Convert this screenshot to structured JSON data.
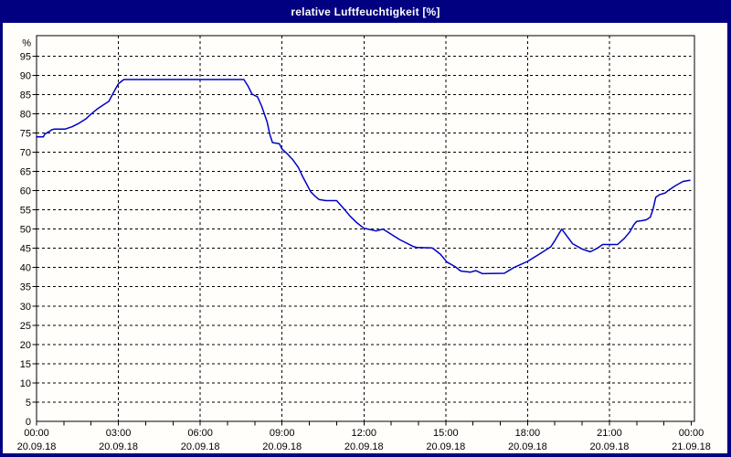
{
  "window": {
    "title": "relative Luftfeuchtigkeit [%]"
  },
  "colors": {
    "titlebar_bg": "#000080",
    "titlebar_text": "#ffffff",
    "window_border": "#000080",
    "plot_bg": "#fffefa",
    "grid": "#000000",
    "axis": "#000000",
    "label_text": "#000000",
    "line": "#0000c8"
  },
  "chart_data": {
    "type": "line",
    "title": "relative Luftfeuchtigkeit [%]",
    "grid": {
      "dash": "3,3",
      "color": "#000000",
      "visible": true
    },
    "legend": "none",
    "y_axis": {
      "unit_label": "%",
      "min": 0,
      "max": 95,
      "step": 5,
      "tick_values": [
        0,
        5,
        10,
        15,
        20,
        25,
        30,
        35,
        40,
        45,
        50,
        55,
        60,
        65,
        70,
        75,
        80,
        85,
        90,
        95
      ]
    },
    "x_axis": {
      "range_hours": [
        0,
        24
      ],
      "minor_tick_hours": 1,
      "ticks": [
        {
          "h": 0,
          "time": "00:00",
          "date": "20.09.18"
        },
        {
          "h": 3,
          "time": "03:00",
          "date": "20.09.18"
        },
        {
          "h": 6,
          "time": "06:00",
          "date": "20.09.18"
        },
        {
          "h": 9,
          "time": "09:00",
          "date": "20.09.18"
        },
        {
          "h": 12,
          "time": "12:00",
          "date": "20.09.18"
        },
        {
          "h": 15,
          "time": "15:00",
          "date": "20.09.18"
        },
        {
          "h": 18,
          "time": "18:00",
          "date": "20.09.18"
        },
        {
          "h": 21,
          "time": "21:00",
          "date": "20.09.18"
        },
        {
          "h": 24,
          "time": "00:00",
          "date": "21.09.18"
        }
      ]
    },
    "series": [
      {
        "name": "relative Luftfeuchtigkeit",
        "color": "#0000c8",
        "points": [
          [
            0.0,
            74
          ],
          [
            0.25,
            74
          ],
          [
            0.3,
            74.7
          ],
          [
            0.45,
            75.3
          ],
          [
            0.55,
            75.8
          ],
          [
            0.65,
            76
          ],
          [
            1.05,
            76
          ],
          [
            1.3,
            76.6
          ],
          [
            1.55,
            77.5
          ],
          [
            1.8,
            78.6
          ],
          [
            2.0,
            79.9
          ],
          [
            2.2,
            81.1
          ],
          [
            2.45,
            82.3
          ],
          [
            2.65,
            83.2
          ],
          [
            2.85,
            85.9
          ],
          [
            3.0,
            87.8
          ],
          [
            3.2,
            88.9
          ],
          [
            7.6,
            88.9
          ],
          [
            7.75,
            87.2
          ],
          [
            7.9,
            85.1
          ],
          [
            8.1,
            84.4
          ],
          [
            8.25,
            82
          ],
          [
            8.45,
            77.9
          ],
          [
            8.55,
            74.6
          ],
          [
            8.65,
            72.5
          ],
          [
            8.9,
            72.2
          ],
          [
            9.0,
            70.8
          ],
          [
            9.2,
            69.5
          ],
          [
            9.4,
            68
          ],
          [
            9.6,
            66
          ],
          [
            9.75,
            63.7
          ],
          [
            9.9,
            61.7
          ],
          [
            10.05,
            59.7
          ],
          [
            10.2,
            58.6
          ],
          [
            10.35,
            57.7
          ],
          [
            10.6,
            57.4
          ],
          [
            11.0,
            57.4
          ],
          [
            11.15,
            56.2
          ],
          [
            11.3,
            55
          ],
          [
            11.5,
            53.3
          ],
          [
            11.75,
            51.6
          ],
          [
            12.0,
            50.2
          ],
          [
            12.15,
            50
          ],
          [
            12.45,
            49.5
          ],
          [
            12.7,
            50
          ],
          [
            13.3,
            47.3
          ],
          [
            13.8,
            45.5
          ],
          [
            13.95,
            45.2
          ],
          [
            14.5,
            45.1
          ],
          [
            14.6,
            44.6
          ],
          [
            14.8,
            43.5
          ],
          [
            15.05,
            41.4
          ],
          [
            15.35,
            40.2
          ],
          [
            15.55,
            39.1
          ],
          [
            15.9,
            38.8
          ],
          [
            16.1,
            39.2
          ],
          [
            16.35,
            38.4
          ],
          [
            17.15,
            38.5
          ],
          [
            17.5,
            40
          ],
          [
            18.0,
            41.6
          ],
          [
            18.5,
            43.8
          ],
          [
            18.85,
            45.4
          ],
          [
            19.0,
            47
          ],
          [
            19.25,
            50
          ],
          [
            19.65,
            46.2
          ],
          [
            20.0,
            44.8
          ],
          [
            20.3,
            44.1
          ],
          [
            20.55,
            45
          ],
          [
            20.75,
            46
          ],
          [
            21.3,
            46
          ],
          [
            21.55,
            47.6
          ],
          [
            21.75,
            49.3
          ],
          [
            21.9,
            51.2
          ],
          [
            22.0,
            52
          ],
          [
            22.2,
            52.2
          ],
          [
            22.35,
            52.4
          ],
          [
            22.5,
            53.1
          ],
          [
            22.6,
            55.2
          ],
          [
            22.7,
            58.3
          ],
          [
            22.85,
            59
          ],
          [
            23.05,
            59.4
          ],
          [
            23.15,
            60
          ],
          [
            23.4,
            61.2
          ],
          [
            23.7,
            62.4
          ],
          [
            23.95,
            62.7
          ]
        ]
      }
    ]
  }
}
